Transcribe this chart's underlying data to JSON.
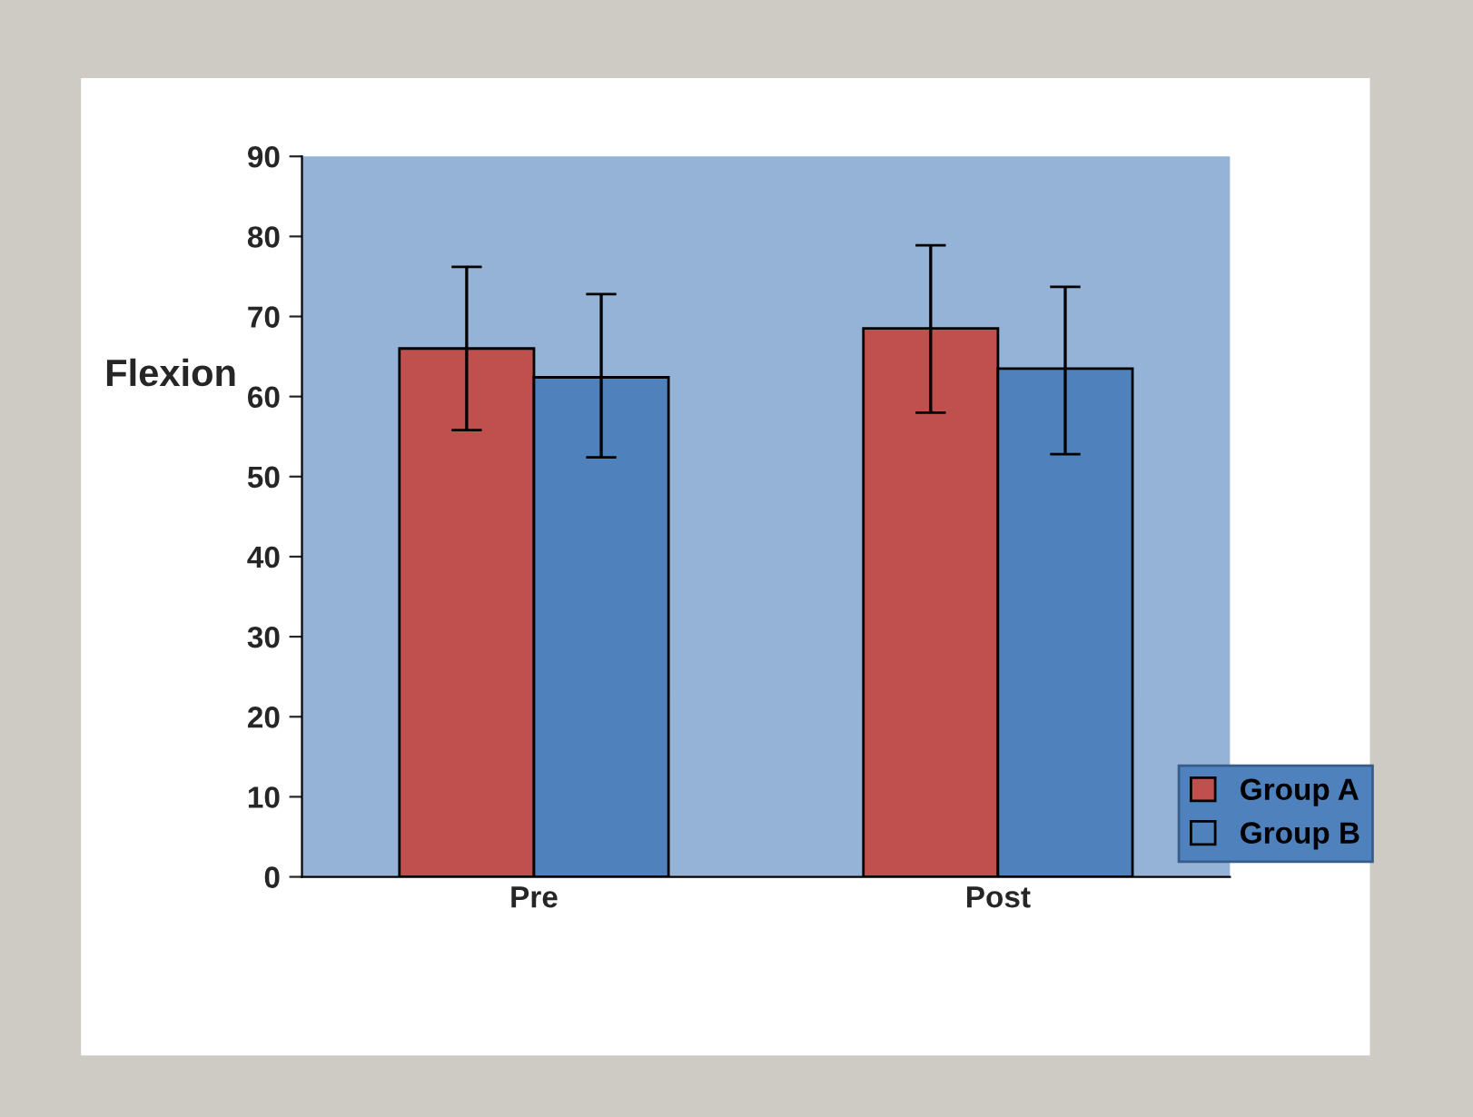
{
  "chart_data": {
    "type": "bar",
    "ylabel": "Flexion",
    "categories": [
      "Pre",
      "Post"
    ],
    "series": [
      {
        "name": "Group A",
        "color": "#c0504d",
        "values": [
          66.0,
          68.5
        ],
        "errors": [
          [
            55.8,
            76.2
          ],
          [
            58.0,
            78.9
          ]
        ]
      },
      {
        "name": "Group B",
        "color": "#4f81bd",
        "values": [
          62.4,
          63.5
        ],
        "errors": [
          [
            52.4,
            72.8
          ],
          [
            52.8,
            73.7
          ]
        ]
      }
    ],
    "ylim": [
      0,
      90
    ],
    "yticks": [
      0,
      10,
      20,
      30,
      40,
      50,
      60,
      70,
      80,
      90
    ],
    "grid": false,
    "legend": "bottom right"
  }
}
